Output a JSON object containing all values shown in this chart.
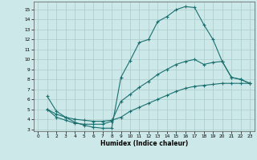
{
  "xlabel": "Humidex (Indice chaleur)",
  "bg_color": "#cde8e8",
  "grid_color": "#aacccc",
  "line_color": "#1a7070",
  "xlim": [
    -0.5,
    23.5
  ],
  "ylim": [
    2.8,
    15.8
  ],
  "yticks": [
    3,
    4,
    5,
    6,
    7,
    8,
    9,
    10,
    11,
    12,
    13,
    14,
    15
  ],
  "xticks": [
    0,
    1,
    2,
    3,
    4,
    5,
    6,
    7,
    8,
    9,
    10,
    11,
    12,
    13,
    14,
    15,
    16,
    17,
    18,
    19,
    20,
    21,
    22,
    23
  ],
  "curve1_x": [
    1,
    2,
    3,
    4,
    5,
    6,
    7,
    8,
    9,
    10,
    11,
    12,
    13,
    14,
    15,
    16,
    17,
    18,
    19,
    20,
    21,
    22,
    23
  ],
  "curve1_y": [
    6.3,
    4.8,
    4.2,
    3.7,
    3.4,
    3.2,
    3.1,
    3.1,
    8.2,
    9.9,
    11.7,
    12.0,
    13.8,
    14.3,
    15.0,
    15.3,
    15.2,
    13.5,
    12.0,
    9.8,
    8.2,
    8.0,
    7.6
  ],
  "curve2_x": [
    1,
    2,
    3,
    4,
    5,
    6,
    7,
    8,
    9,
    10,
    11,
    12,
    13,
    14,
    15,
    16,
    17,
    18,
    19,
    20,
    21,
    22,
    23
  ],
  "curve2_y": [
    5.0,
    4.2,
    3.9,
    3.6,
    3.5,
    3.5,
    3.5,
    3.8,
    5.8,
    6.5,
    7.2,
    7.8,
    8.5,
    9.0,
    9.5,
    9.8,
    10.0,
    9.5,
    9.7,
    9.8,
    8.2,
    8.0,
    7.6
  ],
  "curve3_x": [
    1,
    2,
    3,
    4,
    5,
    6,
    7,
    8,
    9,
    10,
    11,
    12,
    13,
    14,
    15,
    16,
    17,
    18,
    19,
    20,
    21,
    22,
    23
  ],
  "curve3_y": [
    5.0,
    4.5,
    4.2,
    4.0,
    3.9,
    3.8,
    3.8,
    3.9,
    4.2,
    4.8,
    5.2,
    5.6,
    6.0,
    6.4,
    6.8,
    7.1,
    7.3,
    7.4,
    7.5,
    7.6,
    7.6,
    7.6,
    7.6
  ]
}
